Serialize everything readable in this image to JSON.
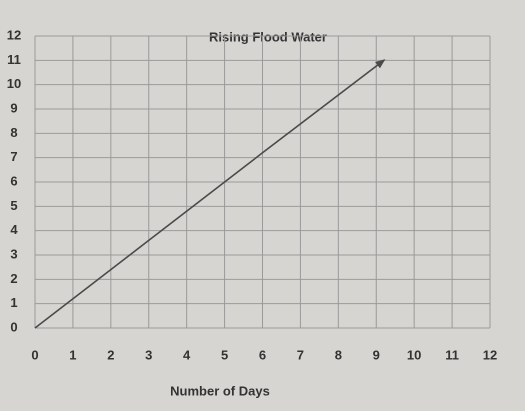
{
  "chart_data": {
    "type": "line",
    "title": "Rising Flood Water",
    "xlabel": "Number of Days",
    "x": [
      0,
      3,
      6,
      9.2
    ],
    "values": [
      0,
      3.6,
      7.2,
      11
    ],
    "color": "#4a4a4a",
    "xlim": [
      0,
      12
    ],
    "ylim": [
      0,
      12
    ],
    "xticks": [
      0,
      1,
      2,
      3,
      4,
      5,
      6,
      7,
      8,
      9,
      10,
      11,
      12
    ],
    "yticks": [
      0,
      1,
      2,
      3,
      4,
      5,
      6,
      7,
      8,
      9,
      10,
      11,
      12
    ],
    "grid": true
  }
}
